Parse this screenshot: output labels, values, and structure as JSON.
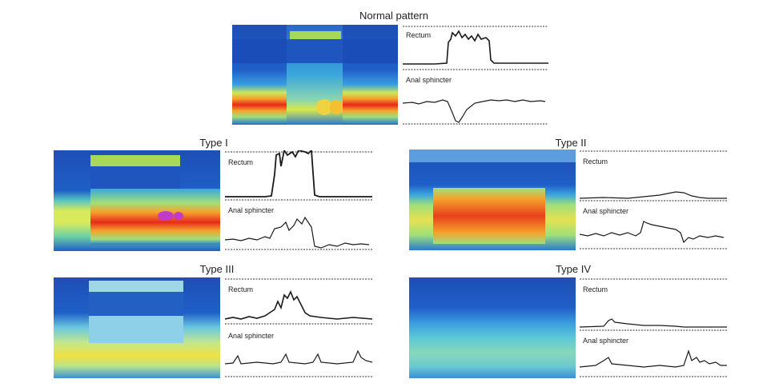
{
  "colors": {
    "trace": "#1a1a1a",
    "background": "#ffffff"
  },
  "panels": [
    {
      "id": "normal",
      "title": "Normal pattern",
      "rectum_label": "Rectum",
      "sphincter_label": "Anal sphincter"
    },
    {
      "id": "type1",
      "title": "Type I",
      "rectum_label": "Rectum",
      "sphincter_label": "Anal sphincter"
    },
    {
      "id": "type2",
      "title": "Type II",
      "rectum_label": "Rectum",
      "sphincter_label": "Anal sphincter"
    },
    {
      "id": "type3",
      "title": "Type III",
      "rectum_label": "Rectum",
      "sphincter_label": "Anal sphincter"
    },
    {
      "id": "type4",
      "title": "Type IV",
      "rectum_label": "Rectum",
      "sphincter_label": "Anal sphincter"
    }
  ]
}
